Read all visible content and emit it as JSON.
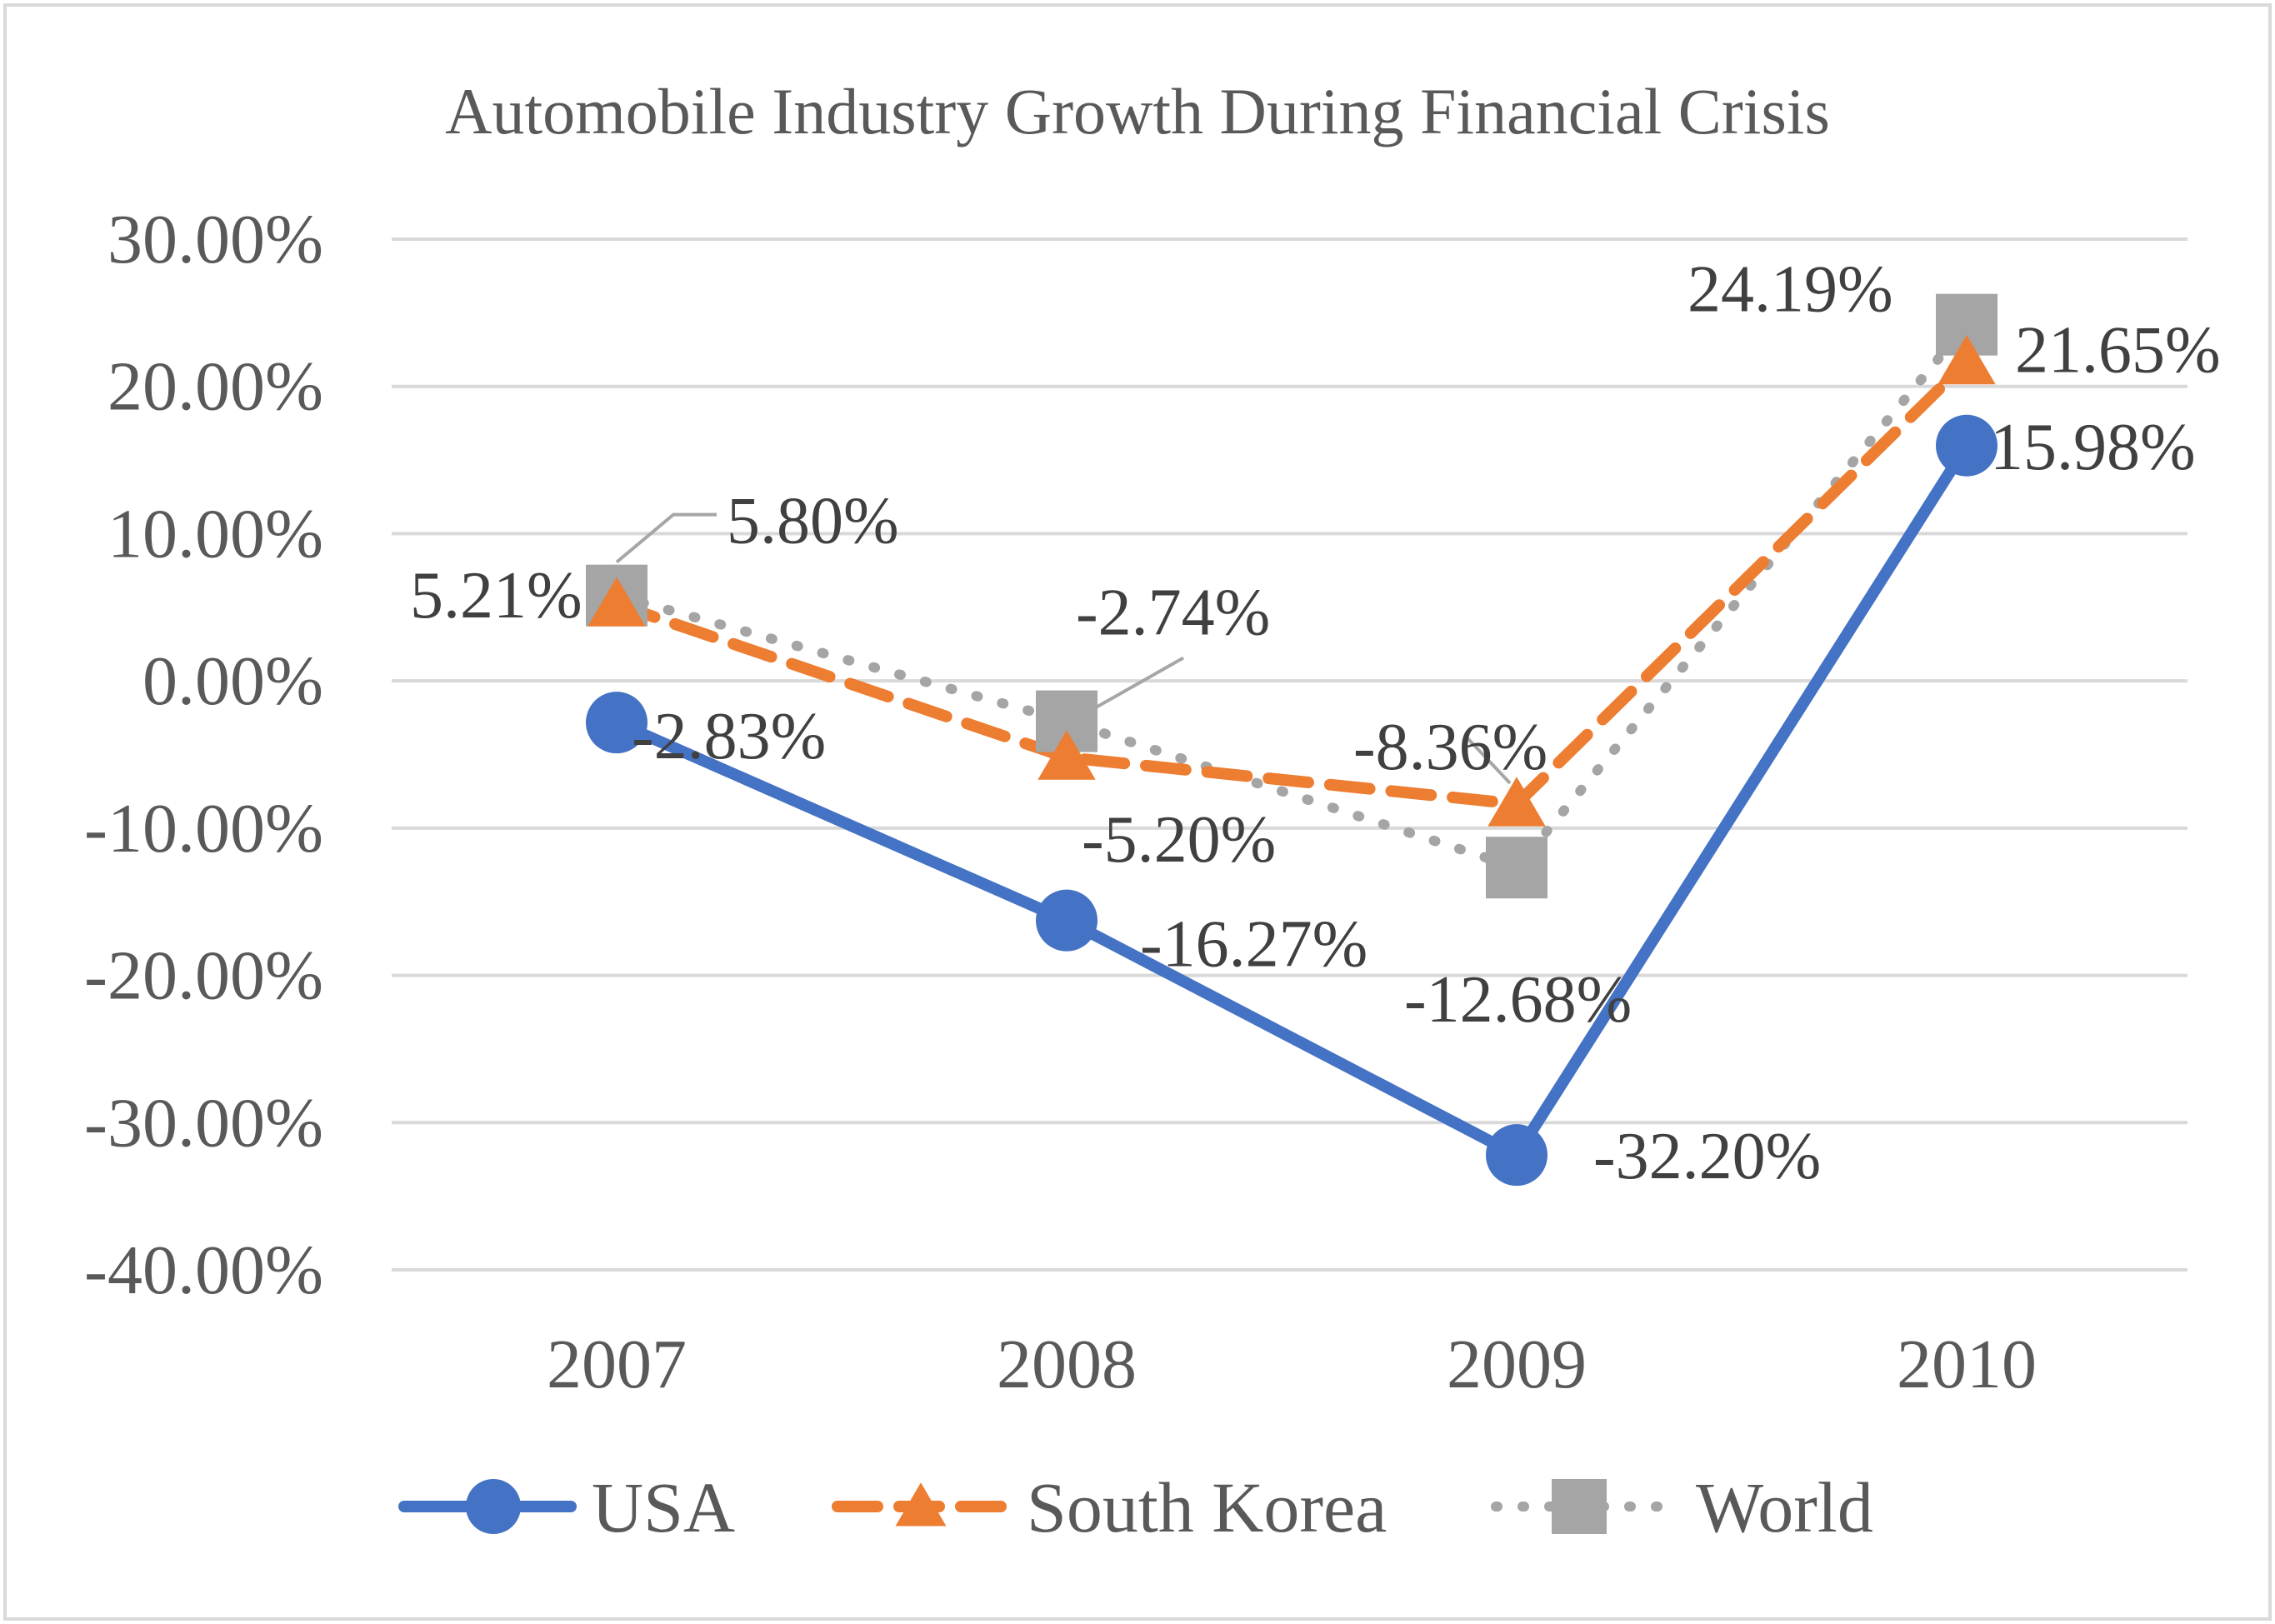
{
  "chart_data": {
    "type": "line",
    "title": "Automobile Industry Growth During Financial Crisis",
    "xlabel": "",
    "ylabel": "",
    "categories": [
      "2007",
      "2008",
      "2009",
      "2010"
    ],
    "ylim": [
      -40,
      30
    ],
    "y_ticks": [
      30,
      20,
      10,
      0,
      -10,
      -20,
      -30,
      -40
    ],
    "y_tick_labels": [
      "30.00%",
      "20.00%",
      "10.00%",
      "0.00%",
      "-10.00%",
      "-20.00%",
      "-30.00%",
      "-40.00%"
    ],
    "grid": true,
    "legend_position": "bottom",
    "series": [
      {
        "name": "USA",
        "values": [
          -2.83,
          -16.27,
          -32.2,
          15.98
        ],
        "labels": [
          "-2.83%",
          "-16.27%",
          "-32.20%",
          "15.98%"
        ],
        "color": "#4472C4",
        "marker": "circle",
        "line_style": "solid"
      },
      {
        "name": "South Korea",
        "values": [
          5.21,
          -5.2,
          -8.36,
          21.65
        ],
        "labels": [
          "5.21%",
          "-5.20%",
          "-8.36%",
          "21.65%"
        ],
        "color": "#ED7D31",
        "marker": "triangle",
        "line_style": "dashed"
      },
      {
        "name": "World",
        "values": [
          5.8,
          -2.74,
          -12.68,
          24.19
        ],
        "labels": [
          "5.80%",
          "-2.74%",
          "-12.68%",
          "24.19%"
        ],
        "color": "#A5A5A5",
        "marker": "square",
        "line_style": "dotted"
      }
    ]
  }
}
